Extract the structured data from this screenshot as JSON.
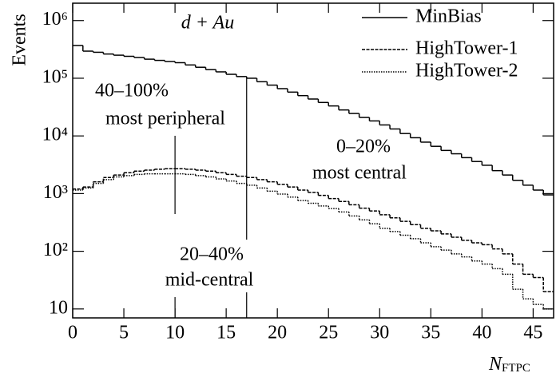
{
  "chart_data": {
    "type": "histogram",
    "x_label": {
      "main": "N",
      "sub": "FTPC"
    },
    "y_label": "Events",
    "log_y": true,
    "bins": [
      0,
      1,
      2,
      3,
      4,
      5,
      6,
      7,
      8,
      9,
      10,
      11,
      12,
      13,
      14,
      15,
      16,
      17,
      18,
      19,
      20,
      21,
      22,
      23,
      24,
      25,
      26,
      27,
      28,
      29,
      30,
      31,
      32,
      33,
      34,
      35,
      36,
      37,
      38,
      39,
      40,
      41,
      42,
      43,
      44,
      45,
      46,
      47
    ],
    "series": [
      {
        "name": "MinBias",
        "color": "#000000",
        "dash": "solid",
        "values": [
          370000,
          295000,
          282000,
          263000,
          251000,
          240000,
          229000,
          214000,
          204000,
          195000,
          186000,
          170000,
          155000,
          141000,
          129000,
          117000,
          107000,
          100000,
          87000,
          76000,
          66000,
          57500,
          50000,
          43600,
          38000,
          33100,
          28200,
          24500,
          20900,
          18200,
          15500,
          13200,
          11000,
          9300,
          7800,
          6600,
          5600,
          4900,
          4200,
          3600,
          3100,
          2500,
          2100,
          1700,
          1400,
          1150,
          950
        ]
      },
      {
        "name": "HighTower-1",
        "color": "#000000",
        "dash": "dashed",
        "values": [
          1200,
          1300,
          1600,
          1900,
          2100,
          2300,
          2450,
          2550,
          2650,
          2700,
          2700,
          2650,
          2550,
          2450,
          2300,
          2150,
          2000,
          1900,
          1750,
          1600,
          1450,
          1300,
          1150,
          1050,
          930,
          820,
          730,
          640,
          560,
          500,
          430,
          380,
          330,
          290,
          250,
          226,
          200,
          175,
          155,
          140,
          130,
          110,
          90,
          60,
          40,
          35,
          20
        ]
      },
      {
        "name": "HighTower-2",
        "color": "#000000",
        "dash": "dotted",
        "values": [
          1150,
          1250,
          1500,
          1750,
          1950,
          2050,
          2150,
          2200,
          2200,
          2200,
          2200,
          2150,
          2050,
          1950,
          1800,
          1650,
          1500,
          1400,
          1250,
          1100,
          980,
          870,
          760,
          680,
          610,
          550,
          480,
          410,
          350,
          300,
          250,
          220,
          190,
          165,
          140,
          120,
          105,
          90,
          80,
          68,
          60,
          50,
          40,
          22,
          15,
          12,
          10
        ]
      }
    ],
    "xlim": [
      0,
      47
    ],
    "xticks": [
      0,
      5,
      10,
      15,
      20,
      25,
      30,
      35,
      40,
      45
    ],
    "ylim": [
      7,
      2000000
    ],
    "yticks": [
      10,
      {
        "value": 100,
        "label": "10²"
      },
      {
        "value": 1000,
        "label": "10³"
      },
      {
        "value": 10000,
        "label": "10⁴"
      },
      {
        "value": 100000,
        "label": "10⁵"
      },
      {
        "value": 1000000,
        "label": "10⁶"
      }
    ],
    "cuts": [
      10,
      17
    ],
    "legend": "upper right",
    "annotations": [
      "d + Au",
      "40–100%",
      "most peripheral",
      "0–20%",
      "most central",
      "20–40%",
      "mid-central"
    ]
  }
}
